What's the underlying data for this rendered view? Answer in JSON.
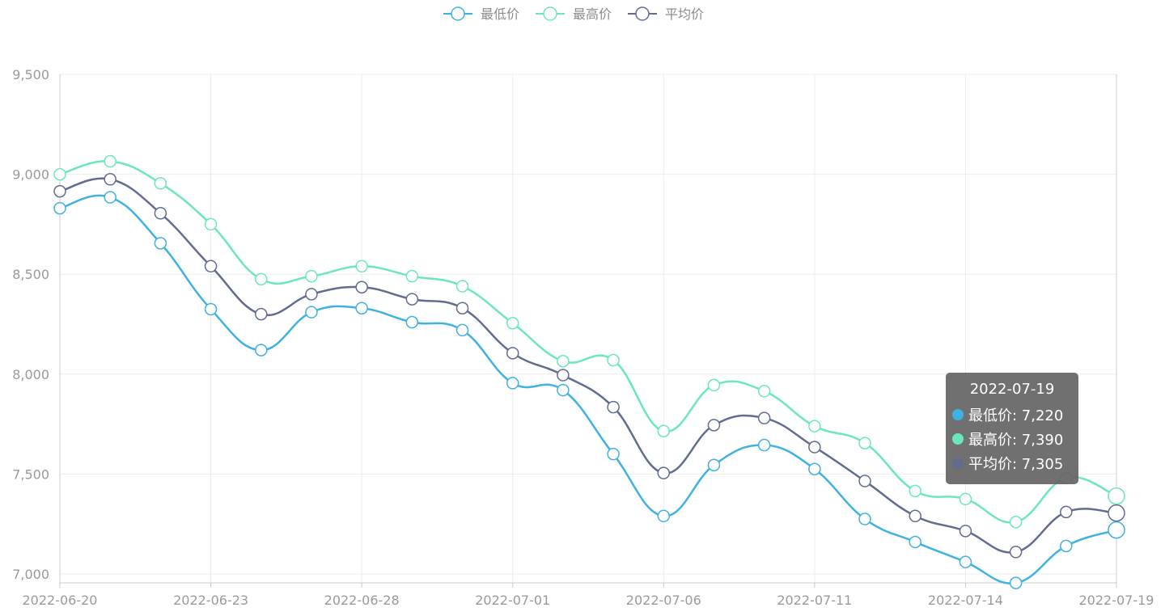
{
  "chart_data": {
    "type": "line",
    "x": [
      "2022-06-20",
      "2022-06-21",
      "2022-06-22",
      "2022-06-23",
      "2022-06-24",
      "2022-06-27",
      "2022-06-28",
      "2022-06-29",
      "2022-06-30",
      "2022-07-01",
      "2022-07-04",
      "2022-07-05",
      "2022-07-06",
      "2022-07-07",
      "2022-07-08",
      "2022-07-11",
      "2022-07-12",
      "2022-07-13",
      "2022-07-14",
      "2022-07-15",
      "2022-07-18",
      "2022-07-19"
    ],
    "xtick_labels": [
      "2022-06-20",
      "2022-06-23",
      "2022-06-28",
      "2022-07-01",
      "2022-07-06",
      "2022-07-11",
      "2022-07-14",
      "2022-07-19"
    ],
    "ylim": [
      6950,
      9500
    ],
    "yticks": [
      7000,
      7500,
      8000,
      8500,
      9000,
      9500
    ],
    "ytick_labels": [
      "7,000",
      "7,500",
      "8,000",
      "8,500",
      "9,000",
      "9,500"
    ],
    "grid": true,
    "legend_position": "top-center",
    "series": [
      {
        "name": "最低价",
        "color": "#3fb1e3",
        "values": [
          8830,
          8885,
          8655,
          8325,
          8120,
          8310,
          8330,
          8260,
          8220,
          7955,
          7920,
          7600,
          7290,
          7545,
          7645,
          7525,
          7275,
          7160,
          7060,
          6955,
          7140,
          7220
        ]
      },
      {
        "name": "最高价",
        "color": "#6be6c1",
        "values": [
          9000,
          9065,
          8955,
          8750,
          8475,
          8490,
          8540,
          8490,
          8440,
          8255,
          8065,
          8070,
          7715,
          7945,
          7915,
          7740,
          7655,
          7415,
          7375,
          7260,
          7480,
          7390
        ]
      },
      {
        "name": "平均价",
        "color": "#626c91",
        "values": [
          8915,
          8975,
          8805,
          8540,
          8300,
          8400,
          8435,
          8375,
          8330,
          8105,
          7995,
          7835,
          7505,
          7745,
          7780,
          7635,
          7465,
          7290,
          7215,
          7110,
          7310,
          7305
        ]
      }
    ],
    "tooltip": {
      "title": "2022-07-19",
      "rows": [
        {
          "label": "最低价: 7,220",
          "color": "#3fb1e3"
        },
        {
          "label": "最高价: 7,390",
          "color": "#6be6c1"
        },
        {
          "label": "平均价: 7,305",
          "color": "#626c91"
        }
      ]
    }
  }
}
